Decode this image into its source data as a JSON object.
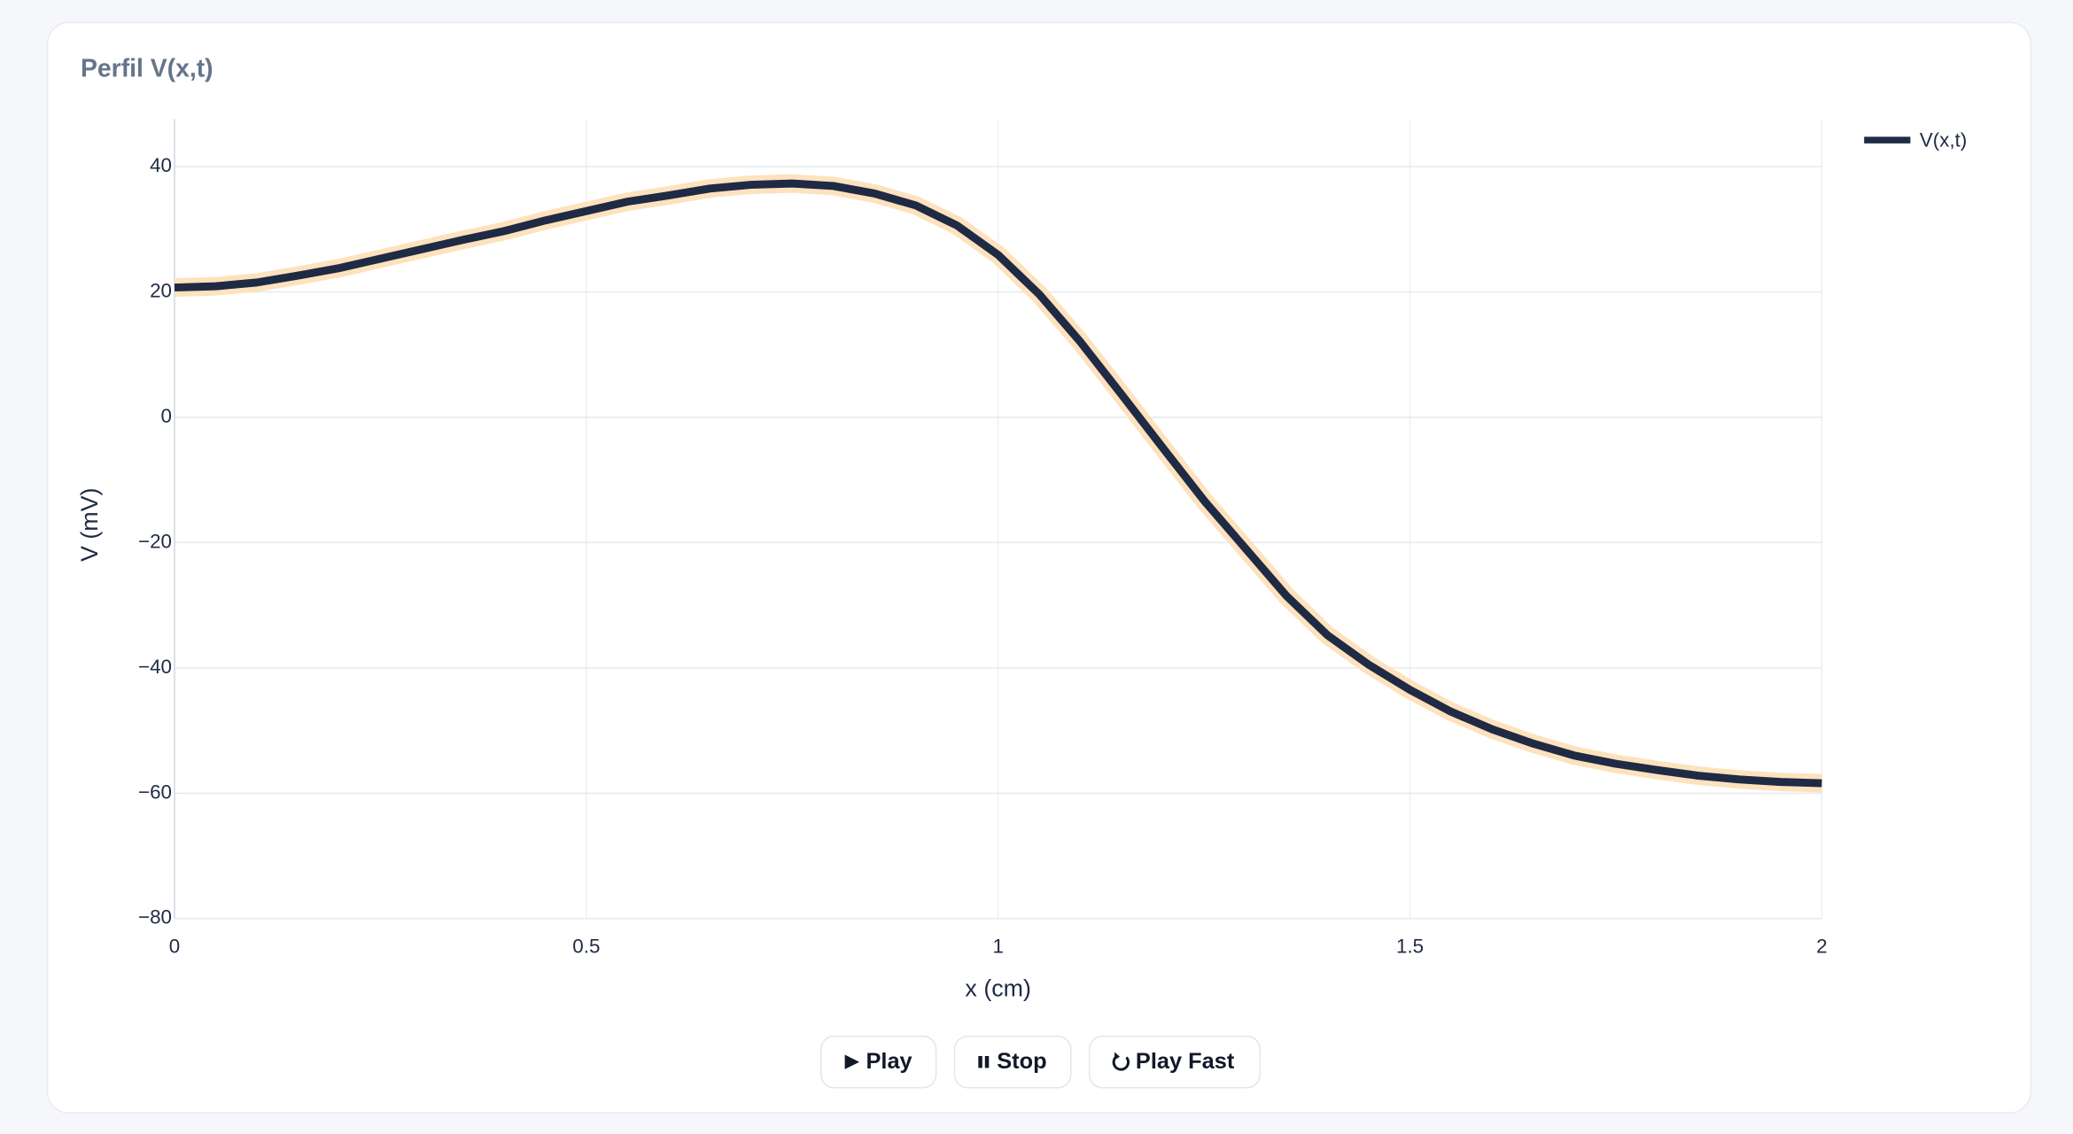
{
  "chart_data": {
    "type": "line",
    "title": "Perfil V(x,t)",
    "x_label": "x (cm)",
    "y_label": "V (mV)",
    "x": [
      0,
      0.05,
      0.1,
      0.15,
      0.2,
      0.25,
      0.3,
      0.35,
      0.4,
      0.45,
      0.5,
      0.55,
      0.6,
      0.65,
      0.7,
      0.75,
      0.8,
      0.85,
      0.9,
      0.95,
      1,
      1.05,
      1.1,
      1.15,
      1.2,
      1.25,
      1.3,
      1.35,
      1.4,
      1.45,
      1.5,
      1.55,
      1.6,
      1.65,
      1.7,
      1.75,
      1.8,
      1.85,
      1.9,
      1.95,
      2
    ],
    "series": [
      {
        "name": "V(x,t)",
        "color": "#1f2a44",
        "halo_color": "#fde2bd",
        "values": [
          20.7,
          20.9,
          21.5,
          22.6,
          23.8,
          25.3,
          26.8,
          28.3,
          29.7,
          31.4,
          32.9,
          34.4,
          35.4,
          36.5,
          37.1,
          37.3,
          36.9,
          35.7,
          33.8,
          30.6,
          25.9,
          19.6,
          12,
          3.6,
          -4.9,
          -13.3,
          -20.9,
          -28.5,
          -34.8,
          -39.5,
          -43.5,
          -47,
          -49.8,
          -52.1,
          -54,
          -55.3,
          -56.3,
          -57.2,
          -57.8,
          -58.2,
          -58.4
        ]
      }
    ],
    "xlim": [
      0,
      2
    ],
    "xticks": [
      0,
      0.5,
      1,
      1.5,
      2
    ],
    "ylim": [
      -80,
      47.6
    ],
    "yticks": [
      {
        "value": -80,
        "label": "−80"
      },
      {
        "value": -60,
        "label": "−60"
      },
      {
        "value": -40,
        "label": "−40"
      },
      {
        "value": -20,
        "label": "−20"
      },
      0,
      20,
      40
    ],
    "grid": true,
    "legend": "top-right"
  },
  "controls": [
    "Play",
    "Stop",
    "Play Fast"
  ]
}
